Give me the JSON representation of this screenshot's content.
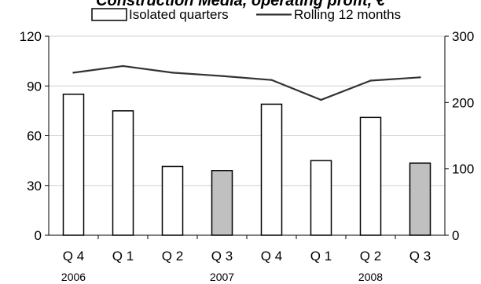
{
  "chart_data": {
    "type": "bar",
    "title": "Construction Media, operating profit, €",
    "categories": [
      "Q 4",
      "Q 1",
      "Q 2",
      "Q 3",
      "Q 4",
      "Q 1",
      "Q 2",
      "Q 3"
    ],
    "years": [
      {
        "label": "2006",
        "category_index": 0
      },
      {
        "label": "2007",
        "category_index": 3
      },
      {
        "label": "2008",
        "category_index": 6
      }
    ],
    "series": [
      {
        "name": "Isolated quarters",
        "type": "bar",
        "axis": "left",
        "values": [
          85,
          75,
          41.5,
          39,
          79,
          45,
          71,
          43.5
        ],
        "colors": [
          "#ffffff",
          "#ffffff",
          "#ffffff",
          "#c0c0c0",
          "#ffffff",
          "#ffffff",
          "#ffffff",
          "#c0c0c0"
        ]
      },
      {
        "name": "Rolling 12 months",
        "type": "line",
        "axis": "right",
        "values": [
          245,
          255,
          245,
          240,
          234,
          204,
          233,
          238
        ],
        "color": "#333333"
      }
    ],
    "y_left": {
      "lim": [
        0,
        120
      ],
      "ticks": [
        0,
        30,
        60,
        90,
        120
      ]
    },
    "y_right": {
      "lim": [
        0,
        300
      ],
      "ticks": [
        0,
        100,
        200,
        300
      ]
    },
    "legend_position": "top",
    "grid": "horizontal"
  }
}
